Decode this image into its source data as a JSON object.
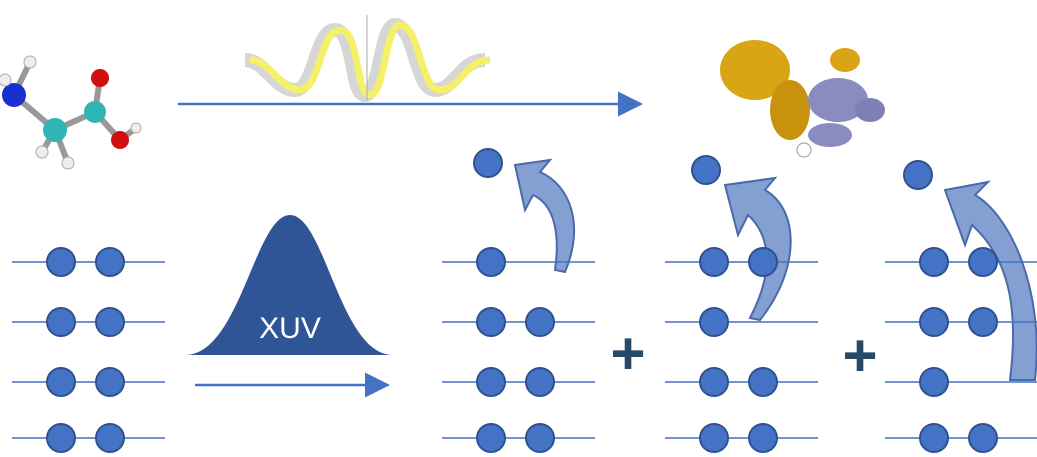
{
  "pulse_label": "XUV",
  "operators": [
    "+",
    "+"
  ]
}
